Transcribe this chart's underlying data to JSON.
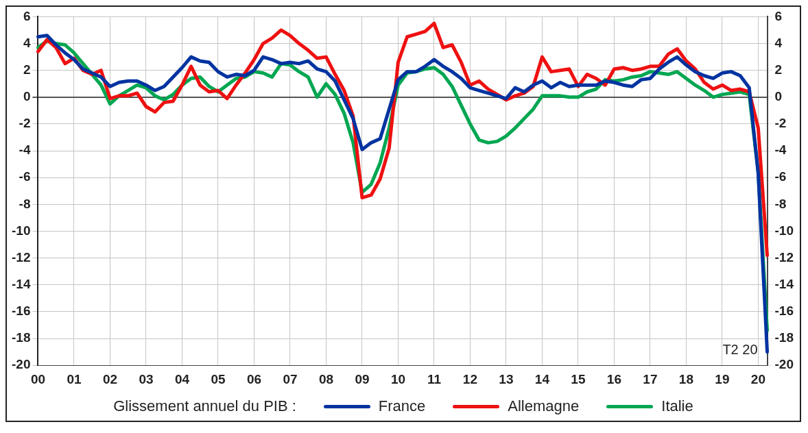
{
  "chart_data": {
    "type": "line",
    "categories": [
      "00",
      null,
      null,
      null,
      "01",
      null,
      null,
      null,
      "02",
      null,
      null,
      null,
      "03",
      null,
      null,
      null,
      "04",
      null,
      null,
      null,
      "05",
      null,
      null,
      null,
      "06",
      null,
      null,
      null,
      "07",
      null,
      null,
      null,
      "08",
      null,
      null,
      null,
      "09",
      null,
      null,
      null,
      "10",
      null,
      null,
      null,
      "11",
      null,
      null,
      null,
      "12",
      null,
      null,
      null,
      "13",
      null,
      null,
      null,
      "14",
      null,
      null,
      null,
      "15",
      null,
      null,
      null,
      "16",
      null,
      null,
      null,
      "17",
      null,
      null,
      null,
      "18",
      null,
      null,
      null,
      "19",
      null,
      null,
      null,
      "20",
      null
    ],
    "series": [
      {
        "name": "France",
        "color": "#0033a0",
        "values": [
          4.5,
          4.6,
          3.9,
          3.3,
          2.8,
          2.1,
          1.8,
          1.5,
          0.8,
          1.1,
          1.2,
          1.2,
          0.9,
          0.5,
          0.8,
          1.5,
          2.2,
          3.0,
          2.7,
          2.6,
          1.9,
          1.5,
          1.7,
          1.6,
          2.0,
          3.0,
          2.8,
          2.5,
          2.6,
          2.5,
          2.7,
          2.1,
          1.9,
          1.2,
          -0.2,
          -1.6,
          -3.9,
          -3.4,
          -3.1,
          -0.9,
          1.3,
          1.9,
          1.9,
          2.3,
          2.8,
          2.3,
          1.9,
          1.4,
          0.7,
          0.5,
          0.3,
          0.1,
          -0.1,
          0.7,
          0.4,
          0.9,
          1.2,
          0.7,
          1.1,
          0.8,
          0.9,
          0.9,
          0.9,
          1.2,
          1.1,
          0.9,
          0.8,
          1.3,
          1.4,
          2.1,
          2.6,
          3.0,
          2.4,
          1.9,
          1.6,
          1.4,
          1.8,
          1.9,
          1.6,
          0.7,
          -5.7,
          -19.0
        ]
      },
      {
        "name": "Allemagne",
        "color": "#ee1111",
        "values": [
          3.4,
          4.3,
          3.7,
          2.5,
          2.9,
          2.0,
          1.7,
          2.0,
          -0.1,
          0.1,
          0.1,
          0.3,
          -0.7,
          -1.1,
          -0.4,
          -0.3,
          0.9,
          2.3,
          0.9,
          0.4,
          0.5,
          -0.1,
          0.9,
          1.8,
          2.8,
          4.0,
          4.4,
          5.0,
          4.6,
          4.0,
          3.5,
          2.9,
          3.0,
          1.7,
          0.5,
          -1.4,
          -7.5,
          -7.3,
          -6.1,
          -3.8,
          2.6,
          4.5,
          4.7,
          4.9,
          5.5,
          3.7,
          3.9,
          2.6,
          0.9,
          1.2,
          0.6,
          0.2,
          -0.2,
          0.1,
          0.3,
          0.8,
          3.0,
          1.9,
          2.0,
          2.1,
          0.8,
          1.7,
          1.4,
          0.9,
          2.1,
          2.2,
          2.0,
          2.1,
          2.3,
          2.3,
          3.2,
          3.6,
          2.7,
          2.1,
          1.1,
          0.6,
          0.9,
          0.5,
          0.6,
          0.4,
          -2.3,
          -11.8
        ]
      },
      {
        "name": "Italie",
        "color": "#00a651",
        "values": [
          3.7,
          4.2,
          4.0,
          3.9,
          3.3,
          2.5,
          1.7,
          0.9,
          -0.5,
          0.1,
          0.5,
          0.9,
          0.7,
          0.1,
          -0.2,
          0.2,
          0.9,
          1.4,
          1.5,
          0.8,
          0.4,
          0.9,
          1.4,
          1.5,
          1.9,
          1.8,
          1.5,
          2.5,
          2.4,
          1.9,
          1.5,
          0.0,
          1.0,
          0.2,
          -1.2,
          -3.4,
          -7.1,
          -6.5,
          -4.9,
          -2.3,
          0.9,
          1.8,
          1.9,
          2.1,
          2.2,
          1.7,
          0.8,
          -0.6,
          -2.0,
          -3.2,
          -3.4,
          -3.3,
          -2.9,
          -2.3,
          -1.6,
          -0.9,
          0.1,
          0.1,
          0.1,
          0.0,
          0.0,
          0.4,
          0.6,
          1.3,
          1.2,
          1.3,
          1.5,
          1.6,
          1.9,
          1.8,
          1.7,
          1.9,
          1.4,
          0.9,
          0.5,
          0.0,
          0.2,
          0.3,
          0.4,
          0.2,
          -5.6,
          -17.4
        ]
      }
    ],
    "ylim": [
      -20,
      6
    ],
    "yticks": [
      -20,
      -18,
      -16,
      -14,
      -12,
      -10,
      -8,
      -6,
      -4,
      -2,
      0,
      2,
      4,
      6
    ],
    "y2lim": [
      -20,
      6
    ],
    "y2ticks": [
      -20,
      -18,
      -16,
      -14,
      -12,
      -10,
      -8,
      -6,
      -4,
      -2,
      0,
      2,
      4,
      6
    ],
    "legend_title": "Glissement annuel du PIB :",
    "legend": "bottom",
    "grid": true,
    "marker": "none",
    "line_style": "solid",
    "annotations": [
      "T2 20"
    ]
  }
}
